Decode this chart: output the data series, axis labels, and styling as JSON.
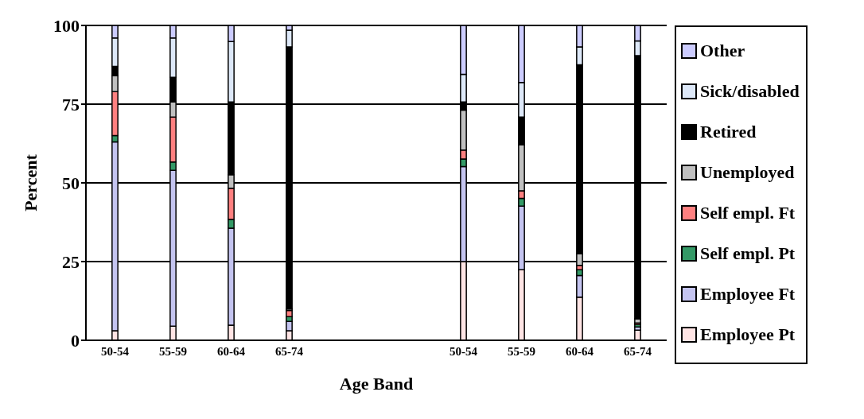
{
  "chart_data": {
    "type": "bar",
    "stacked": true,
    "xlabel": "Age Band",
    "ylabel": "Percent",
    "categories": [
      "50-54",
      "55-59",
      "60-64",
      "65-74",
      null,
      null,
      "50-54",
      "55-59",
      "60-64",
      "65-74"
    ],
    "ylim": [
      0,
      100
    ],
    "yticks": [
      0,
      25,
      50,
      75,
      100
    ],
    "grid": "y",
    "legend": "right",
    "series": [
      {
        "name": "Employee Pt",
        "color": "#ffe4e4",
        "values": [
          3,
          4.5,
          4.8,
          3,
          null,
          null,
          25,
          22.4,
          13.7,
          3.2
        ]
      },
      {
        "name": "Employee Ft",
        "color": "#c4c4f0",
        "values": [
          60,
          49.5,
          30.8,
          3,
          null,
          null,
          30.2,
          20.2,
          6.9,
          1
        ]
      },
      {
        "name": "Self empl. Pt",
        "color": "#339966",
        "values": [
          2,
          2.6,
          2.8,
          1.5,
          null,
          null,
          2.4,
          2.5,
          1.8,
          0.8
        ]
      },
      {
        "name": "Self empl. Ft",
        "color": "#ff8080",
        "values": [
          14,
          14.3,
          9.9,
          2,
          null,
          null,
          2.8,
          2.4,
          1.4,
          0.5
        ]
      },
      {
        "name": "Unemployed",
        "color": "#c0c0c0",
        "values": [
          5,
          4.8,
          4.3,
          0.5,
          null,
          null,
          12.7,
          14.6,
          3.7,
          1.3
        ]
      },
      {
        "name": "Retired",
        "color": "#000000",
        "values": [
          3,
          7.8,
          23.1,
          83.2,
          null,
          null,
          2.6,
          8.8,
          60,
          83.6
        ]
      },
      {
        "name": "Sick/disabled",
        "color": "#dde8f8",
        "values": [
          9,
          12.5,
          19.2,
          5.3,
          null,
          null,
          8.8,
          11,
          5.7,
          4.7
        ]
      },
      {
        "name": "Other",
        "color": "#ccccff",
        "values": [
          4,
          4,
          5.1,
          1.5,
          null,
          null,
          15.5,
          18.1,
          6.8,
          4.9
        ]
      }
    ]
  }
}
